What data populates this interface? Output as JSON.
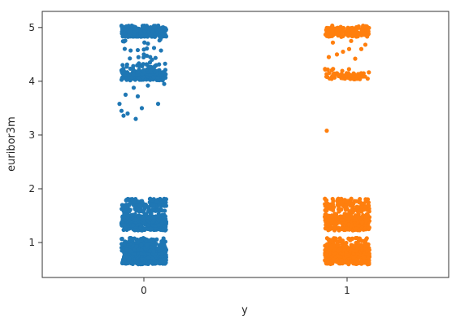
{
  "chart_data": {
    "type": "scatter",
    "style": "strip-plot-with-jitter",
    "xlabel": "y",
    "ylabel": "euribor3m",
    "categories": [
      "0",
      "1"
    ],
    "x_ticks": [
      "0",
      "1"
    ],
    "y_ticks": [
      "1",
      "2",
      "3",
      "4",
      "5"
    ],
    "ylim": [
      0.35,
      5.3
    ],
    "grid": false,
    "legend": "none",
    "series": [
      {
        "category": "0",
        "color": "#1f77b4",
        "clusters": [
          {
            "y": 0.63,
            "count": 50
          },
          {
            "y": 0.64,
            "count": 80
          },
          {
            "y": 0.72,
            "count": 70
          },
          {
            "y": 0.74,
            "count": 50
          },
          {
            "y": 0.79,
            "count": 50
          },
          {
            "y": 0.82,
            "count": 60
          },
          {
            "y": 0.87,
            "count": 90
          },
          {
            "y": 0.88,
            "count": 70
          },
          {
            "y": 0.96,
            "count": 60
          },
          {
            "y": 1.05,
            "count": 40
          },
          {
            "y": 1.26,
            "count": 90
          },
          {
            "y": 1.35,
            "count": 90
          },
          {
            "y": 1.41,
            "count": 80
          },
          {
            "y": 1.45,
            "count": 60
          },
          {
            "y": 1.5,
            "count": 40
          },
          {
            "y": 1.6,
            "count": 40
          },
          {
            "y": 1.69,
            "count": 60
          },
          {
            "y": 1.78,
            "count": 40
          },
          {
            "y": 4.05,
            "count": 60
          },
          {
            "y": 4.1,
            "count": 70
          },
          {
            "y": 4.15,
            "count": 50
          },
          {
            "y": 4.2,
            "count": 30
          },
          {
            "y": 4.3,
            "count": 20
          },
          {
            "y": 4.45,
            "count": 6
          },
          {
            "y": 4.6,
            "count": 5
          },
          {
            "y": 4.75,
            "count": 6
          },
          {
            "y": 4.86,
            "count": 90
          },
          {
            "y": 4.9,
            "count": 70
          },
          {
            "y": 4.96,
            "count": 90
          },
          {
            "y": 5.0,
            "count": 40
          }
        ],
        "points": [
          {
            "x": -0.05,
            "y": 3.88
          },
          {
            "x": 0.02,
            "y": 3.92
          },
          {
            "x": 0.1,
            "y": 3.95
          },
          {
            "x": -0.09,
            "y": 3.75
          },
          {
            "x": -0.03,
            "y": 3.72
          },
          {
            "x": -0.12,
            "y": 3.58
          },
          {
            "x": 0.07,
            "y": 3.58
          },
          {
            "x": -0.11,
            "y": 3.45
          },
          {
            "x": -0.08,
            "y": 3.4
          },
          {
            "x": -0.01,
            "y": 3.5
          },
          {
            "x": -0.1,
            "y": 3.36
          },
          {
            "x": -0.04,
            "y": 3.3
          },
          {
            "x": 0.03,
            "y": 4.35
          },
          {
            "x": 0.0,
            "y": 4.5
          },
          {
            "x": 0.05,
            "y": 4.62
          },
          {
            "x": 0.02,
            "y": 4.7
          },
          {
            "x": -0.03,
            "y": 4.58
          },
          {
            "x": 0.04,
            "y": 4.4
          }
        ]
      },
      {
        "category": "1",
        "color": "#ff7f0e",
        "clusters": [
          {
            "y": 0.63,
            "count": 40
          },
          {
            "y": 0.64,
            "count": 60
          },
          {
            "y": 0.72,
            "count": 50
          },
          {
            "y": 0.74,
            "count": 40
          },
          {
            "y": 0.79,
            "count": 40
          },
          {
            "y": 0.82,
            "count": 50
          },
          {
            "y": 0.87,
            "count": 70
          },
          {
            "y": 0.88,
            "count": 60
          },
          {
            "y": 0.96,
            "count": 40
          },
          {
            "y": 1.05,
            "count": 30
          },
          {
            "y": 1.26,
            "count": 80
          },
          {
            "y": 1.35,
            "count": 80
          },
          {
            "y": 1.41,
            "count": 60
          },
          {
            "y": 1.45,
            "count": 50
          },
          {
            "y": 1.5,
            "count": 35
          },
          {
            "y": 1.6,
            "count": 35
          },
          {
            "y": 1.69,
            "count": 50
          },
          {
            "y": 1.78,
            "count": 35
          },
          {
            "y": 4.07,
            "count": 30
          },
          {
            "y": 4.12,
            "count": 25
          },
          {
            "y": 4.2,
            "count": 8
          },
          {
            "y": 4.86,
            "count": 45
          },
          {
            "y": 4.92,
            "count": 35
          },
          {
            "y": 4.96,
            "count": 45
          },
          {
            "y": 5.0,
            "count": 20
          }
        ],
        "points": [
          {
            "x": -0.1,
            "y": 3.08
          },
          {
            "x": -0.09,
            "y": 4.45
          },
          {
            "x": -0.05,
            "y": 4.5
          },
          {
            "x": 0.01,
            "y": 4.6
          },
          {
            "x": 0.04,
            "y": 4.42
          },
          {
            "x": 0.07,
            "y": 4.6
          },
          {
            "x": 0.02,
            "y": 4.75
          },
          {
            "x": -0.07,
            "y": 4.72
          },
          {
            "x": 0.09,
            "y": 4.68
          },
          {
            "x": -0.02,
            "y": 4.55
          }
        ]
      }
    ]
  }
}
